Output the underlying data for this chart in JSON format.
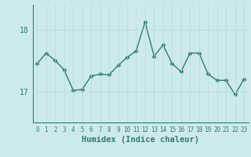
{
  "x": [
    0,
    1,
    2,
    3,
    4,
    5,
    6,
    7,
    8,
    9,
    10,
    11,
    12,
    13,
    14,
    15,
    16,
    17,
    18,
    19,
    20,
    21,
    22,
    23
  ],
  "y": [
    17.45,
    17.62,
    17.5,
    17.35,
    17.02,
    17.03,
    17.25,
    17.28,
    17.27,
    17.42,
    17.55,
    17.65,
    18.12,
    17.57,
    17.75,
    17.45,
    17.32,
    17.62,
    17.62,
    17.28,
    17.18,
    17.18,
    16.95,
    17.2
  ],
  "line_color": "#2e7d6e",
  "marker": "D",
  "marker_size": 2.5,
  "bg_color": "#cdeaea",
  "grid_color": "#b8d8d8",
  "xlabel": "Humidex (Indice chaleur)",
  "yticks": [
    17,
    18
  ],
  "ylim": [
    16.5,
    18.4
  ],
  "xlim": [
    -0.5,
    23.5
  ],
  "tick_color": "#2e7d6e",
  "spine_color": "#2e7d6e",
  "xlabel_color": "#2e7d6e",
  "font_size": 7.0,
  "xlabel_fontsize": 7.5,
  "linewidth": 1.0
}
